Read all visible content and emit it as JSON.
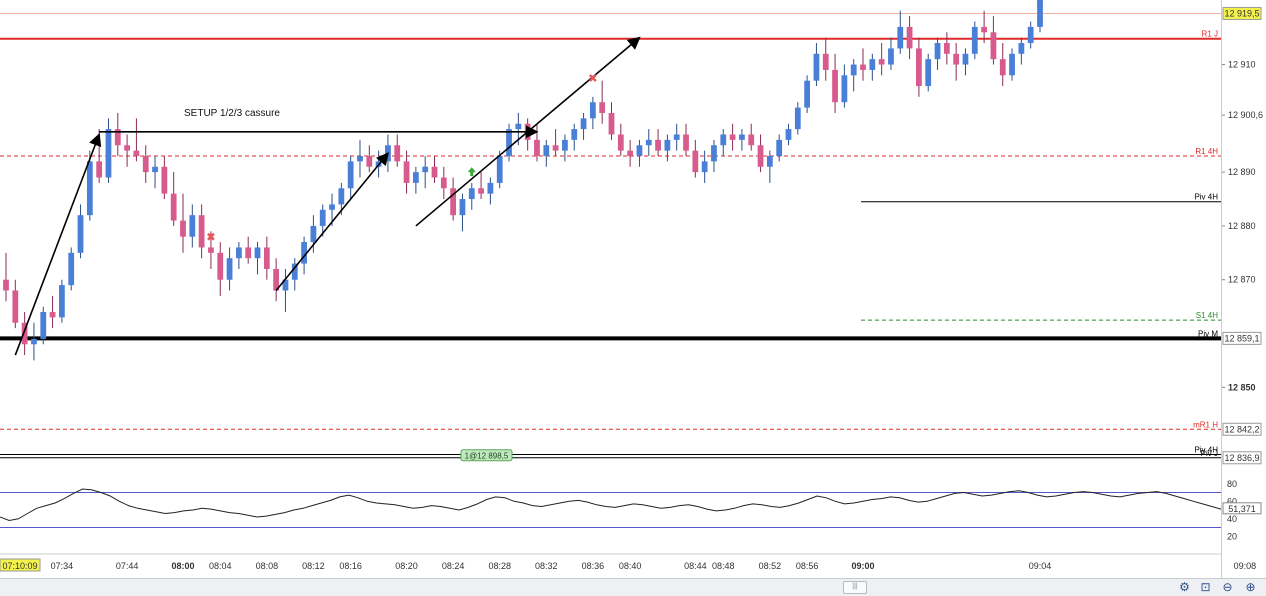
{
  "chart_data": {
    "type": "candlestick",
    "title": "",
    "annotation_text": "SETUP 1/2/3 cassure",
    "order_label": "1@12 898,5",
    "x_tick_labels": [
      {
        "label": "07:10:09",
        "idx": 0,
        "current": true
      },
      {
        "label": "07:34",
        "idx": 6
      },
      {
        "label": "07:44",
        "idx": 13
      },
      {
        "label": "08:00",
        "idx": 19,
        "bold": true
      },
      {
        "label": "08:04",
        "idx": 23
      },
      {
        "label": "08:08",
        "idx": 28
      },
      {
        "label": "08:12",
        "idx": 33
      },
      {
        "label": "08:16",
        "idx": 37
      },
      {
        "label": "08:20",
        "idx": 43
      },
      {
        "label": "08:24",
        "idx": 48
      },
      {
        "label": "08:28",
        "idx": 53
      },
      {
        "label": "08:32",
        "idx": 58
      },
      {
        "label": "08:36",
        "idx": 63
      },
      {
        "label": "08:40",
        "idx": 67
      },
      {
        "label": "08:44",
        "idx": 74
      },
      {
        "label": "08:48",
        "idx": 77
      },
      {
        "label": "08:52",
        "idx": 82
      },
      {
        "label": "08:56",
        "idx": 86
      },
      {
        "label": "09:00",
        "idx": 92,
        "bold": true
      },
      {
        "label": "09:04",
        "idx": 111
      },
      {
        "label": "09:08",
        "idx": 133
      }
    ],
    "y_tick_labels": [
      "12 910",
      "12 900,6",
      "12 890",
      "12 880",
      "12 870",
      "12 850"
    ],
    "y_ticks": [
      12910,
      12900.6,
      12890,
      12880,
      12870,
      12850
    ],
    "ylim": [
      12835,
      12922
    ],
    "price_tags": [
      {
        "label": "12 919,5",
        "value": 12919.5,
        "bg": "#f2f24a"
      },
      {
        "label": "12 859,1",
        "value": 12859.1,
        "bg": "#ffffff"
      },
      {
        "label": "12 842,2",
        "value": 12842.2,
        "bg": "#ffffff"
      },
      {
        "label": "12 836,9",
        "value": 12836.9,
        "bg": "#ffffff"
      }
    ],
    "levels": [
      {
        "label": "R1 4H",
        "value": 12925.5,
        "color": "#e02a2a",
        "style": "dashed",
        "from": 92,
        "to": 141
      },
      {
        "label": "",
        "value": 12919.5,
        "color": "#f0b0a0",
        "style": "solid",
        "from": 0,
        "to": 141
      },
      {
        "label": "R1 J",
        "value": 12914.8,
        "color": "#e02a2a",
        "style": "solid-thick",
        "from": 0,
        "to": 141
      },
      {
        "label": "R1 4H",
        "value": 12893.0,
        "color": "#e02a2a",
        "style": "dashed",
        "from": 0,
        "to": 92
      },
      {
        "label": "Piv 4H",
        "value": 12884.5,
        "color": "#000000",
        "style": "solid",
        "from": 92,
        "to": 141
      },
      {
        "label": "S1 4H",
        "value": 12862.5,
        "color": "#2a8a2a",
        "style": "dashed",
        "from": 92,
        "to": 141
      },
      {
        "label": "Piv M",
        "value": 12859.1,
        "color": "#000000",
        "style": "solid-heavy",
        "from": 0,
        "to": 141
      },
      {
        "label": "mR1 H",
        "value": 12842.2,
        "color": "#e02a2a",
        "style": "dashed",
        "from": 0,
        "to": 141
      },
      {
        "label": "Piv 4H",
        "value": 12837.5,
        "color": "#000000",
        "style": "solid",
        "from": 0,
        "to": 92
      },
      {
        "label": "Piv J",
        "value": 12836.9,
        "color": "#000000",
        "style": "solid",
        "from": 0,
        "to": 141
      }
    ],
    "candles": [
      [
        12870,
        12875,
        12866,
        12868
      ],
      [
        12868,
        12870,
        12861,
        12862
      ],
      [
        12862,
        12864,
        12856,
        12858
      ],
      [
        12858,
        12862,
        12855,
        12859
      ],
      [
        12859,
        12865,
        12858,
        12864
      ],
      [
        12864,
        12867,
        12861,
        12863
      ],
      [
        12863,
        12870,
        12862,
        12869
      ],
      [
        12869,
        12876,
        12868,
        12875
      ],
      [
        12875,
        12884,
        12874,
        12882
      ],
      [
        12882,
        12894,
        12881,
        12892
      ],
      [
        12892,
        12898,
        12888,
        12889
      ],
      [
        12889,
        12900,
        12888,
        12898
      ],
      [
        12898,
        12901,
        12893,
        12895
      ],
      [
        12895,
        12897,
        12891,
        12894
      ],
      [
        12894,
        12900,
        12892,
        12893
      ],
      [
        12893,
        12895,
        12888,
        12890
      ],
      [
        12890,
        12893,
        12887,
        12891
      ],
      [
        12891,
        12893,
        12885,
        12886
      ],
      [
        12886,
        12890,
        12880,
        12881
      ],
      [
        12881,
        12886,
        12875,
        12878
      ],
      [
        12878,
        12884,
        12876,
        12882
      ],
      [
        12882,
        12884,
        12874,
        12876
      ],
      [
        12876,
        12879,
        12872,
        12875
      ],
      [
        12875,
        12877,
        12867,
        12870
      ],
      [
        12870,
        12876,
        12868,
        12874
      ],
      [
        12874,
        12877,
        12872,
        12876
      ],
      [
        12876,
        12878,
        12873,
        12874
      ],
      [
        12874,
        12877,
        12871,
        12876
      ],
      [
        12876,
        12878,
        12870,
        12872
      ],
      [
        12872,
        12874,
        12866,
        12868
      ],
      [
        12868,
        12872,
        12864,
        12870
      ],
      [
        12870,
        12874,
        12868,
        12873
      ],
      [
        12873,
        12878,
        12871,
        12877
      ],
      [
        12877,
        12882,
        12875,
        12880
      ],
      [
        12880,
        12884,
        12878,
        12883
      ],
      [
        12883,
        12886,
        12880,
        12884
      ],
      [
        12884,
        12888,
        12882,
        12887
      ],
      [
        12887,
        12893,
        12885,
        12892
      ],
      [
        12892,
        12896,
        12889,
        12893
      ],
      [
        12893,
        12895,
        12890,
        12891
      ],
      [
        12891,
        12894,
        12889,
        12892
      ],
      [
        12892,
        12897,
        12890,
        12895
      ],
      [
        12895,
        12897,
        12891,
        12892
      ],
      [
        12892,
        12894,
        12886,
        12888
      ],
      [
        12888,
        12891,
        12886,
        12890
      ],
      [
        12890,
        12893,
        12887,
        12891
      ],
      [
        12891,
        12893,
        12888,
        12889
      ],
      [
        12889,
        12891,
        12885,
        12887
      ],
      [
        12887,
        12889,
        12881,
        12882
      ],
      [
        12882,
        12886,
        12879,
        12885
      ],
      [
        12885,
        12888,
        12883,
        12887
      ],
      [
        12887,
        12890,
        12885,
        12886
      ],
      [
        12886,
        12889,
        12884,
        12888
      ],
      [
        12888,
        12894,
        12887,
        12893
      ],
      [
        12893,
        12899,
        12892,
        12898
      ],
      [
        12898,
        12901,
        12895,
        12899
      ],
      [
        12899,
        12900,
        12894,
        12896
      ],
      [
        12896,
        12899,
        12892,
        12893
      ],
      [
        12893,
        12896,
        12891,
        12895
      ],
      [
        12895,
        12898,
        12893,
        12894
      ],
      [
        12894,
        12897,
        12892,
        12896
      ],
      [
        12896,
        12899,
        12894,
        12898
      ],
      [
        12898,
        12901,
        12896,
        12900
      ],
      [
        12900,
        12904,
        12898,
        12903
      ],
      [
        12903,
        12907,
        12899,
        12901
      ],
      [
        12901,
        12903,
        12896,
        12897
      ],
      [
        12897,
        12899,
        12893,
        12894
      ],
      [
        12894,
        12896,
        12891,
        12893
      ],
      [
        12893,
        12896,
        12891,
        12895
      ],
      [
        12895,
        12898,
        12893,
        12896
      ],
      [
        12896,
        12898,
        12893,
        12894
      ],
      [
        12894,
        12897,
        12892,
        12896
      ],
      [
        12896,
        12899,
        12894,
        12897
      ],
      [
        12897,
        12899,
        12893,
        12894
      ],
      [
        12894,
        12896,
        12889,
        12890
      ],
      [
        12890,
        12894,
        12888,
        12892
      ],
      [
        12892,
        12896,
        12890,
        12895
      ],
      [
        12895,
        12898,
        12893,
        12897
      ],
      [
        12897,
        12899,
        12894,
        12896
      ],
      [
        12896,
        12898,
        12894,
        12897
      ],
      [
        12897,
        12899,
        12894,
        12895
      ],
      [
        12895,
        12897,
        12890,
        12891
      ],
      [
        12891,
        12894,
        12888,
        12893
      ],
      [
        12893,
        12897,
        12892,
        12896
      ],
      [
        12896,
        12899,
        12895,
        12898
      ],
      [
        12898,
        12903,
        12897,
        12902
      ],
      [
        12902,
        12908,
        12901,
        12907
      ],
      [
        12907,
        12914,
        12906,
        12912
      ],
      [
        12912,
        12915,
        12907,
        12909
      ],
      [
        12909,
        12912,
        12901,
        12903
      ],
      [
        12903,
        12910,
        12902,
        12908
      ],
      [
        12908,
        12911,
        12905,
        12910
      ],
      [
        12910,
        12913,
        12907,
        12909
      ],
      [
        12909,
        12912,
        12907,
        12911
      ],
      [
        12911,
        12914,
        12908,
        12910
      ],
      [
        12910,
        12915,
        12909,
        12913
      ],
      [
        12913,
        12920,
        12912,
        12917
      ],
      [
        12917,
        12919,
        12911,
        12913
      ],
      [
        12913,
        12915,
        12904,
        12906
      ],
      [
        12906,
        12912,
        12905,
        12911
      ],
      [
        12911,
        12915,
        12909,
        12914
      ],
      [
        12914,
        12916,
        12910,
        12912
      ],
      [
        12912,
        12914,
        12907,
        12910
      ],
      [
        12910,
        12913,
        12908,
        12912
      ],
      [
        12912,
        12918,
        12911,
        12917
      ],
      [
        12917,
        12920,
        12914,
        12916
      ],
      [
        12916,
        12919,
        12910,
        12911
      ],
      [
        12911,
        12914,
        12906,
        12908
      ],
      [
        12908,
        12913,
        12907,
        12912
      ],
      [
        12912,
        12915,
        12910,
        12914
      ],
      [
        12914,
        12918,
        12913,
        12917
      ],
      [
        12917,
        12924,
        12916,
        12922
      ]
    ],
    "rsi": {
      "levels": [
        80,
        60,
        40,
        20
      ],
      "upper": 70,
      "lower": 30,
      "current_label": "51,371",
      "values": [
        42,
        38,
        40,
        46,
        52,
        55,
        58,
        63,
        69,
        74,
        73,
        70,
        66,
        60,
        55,
        52,
        50,
        48,
        46,
        47,
        49,
        50,
        52,
        51,
        49,
        47,
        46,
        44,
        42,
        43,
        45,
        47,
        50,
        52,
        55,
        58,
        61,
        65,
        67,
        64,
        60,
        58,
        57,
        56,
        54,
        52,
        53,
        55,
        54,
        52,
        50,
        53,
        57,
        62,
        65,
        64,
        60,
        58,
        55,
        54,
        56,
        58,
        60,
        61,
        59,
        56,
        54,
        53,
        55,
        57,
        56,
        54,
        52,
        53,
        55,
        56,
        54,
        51,
        49,
        50,
        52,
        55,
        57,
        56,
        54,
        53,
        55,
        58,
        62,
        66,
        64,
        60,
        57,
        58,
        60,
        62,
        63,
        65,
        64,
        61,
        59,
        60,
        63,
        66,
        69,
        70,
        68,
        66,
        67,
        69,
        71,
        72,
        70,
        67,
        65,
        66,
        68,
        70,
        71,
        70,
        68,
        66,
        65,
        67,
        69,
        70,
        71,
        69,
        66,
        63,
        60,
        57,
        54,
        51
      ]
    },
    "arrows": [
      {
        "from": [
          1,
          12856
        ],
        "to": [
          10,
          12897
        ]
      },
      {
        "from": [
          10,
          12897.5
        ],
        "to": [
          57,
          12897.5
        ]
      },
      {
        "from": [
          29,
          12868
        ],
        "to": [
          41,
          12893.5
        ]
      },
      {
        "from": [
          44,
          12880
        ],
        "to": [
          68,
          12915
        ]
      }
    ],
    "markers": [
      {
        "type": "x",
        "idx": 22,
        "value": 12878,
        "color": "#e65a5a"
      },
      {
        "type": "x",
        "idx": 63,
        "value": 12907.5,
        "color": "#e65a5a"
      },
      {
        "type": "up-arrow",
        "idx": 50,
        "value": 12890,
        "color": "#38a838"
      }
    ],
    "colors": {
      "up": "#4a7fd8",
      "down": "#d85b8e",
      "wick_up": "#2b4f8a",
      "wick_down": "#8a2b55",
      "rsi_line": "#222222",
      "rsi_band": "#5555cc",
      "rsi_fill": "#d88aa8"
    }
  },
  "toolbar": {
    "scroll_label": "|||",
    "icons": [
      "gear-icon",
      "zoom-fit-icon",
      "zoom-out-icon",
      "zoom-in-icon"
    ]
  }
}
